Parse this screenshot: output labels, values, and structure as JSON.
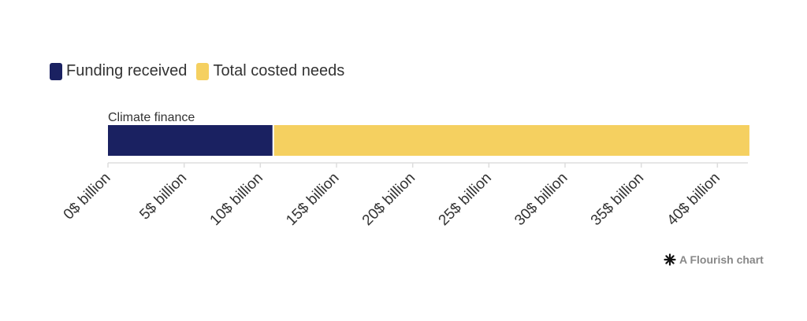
{
  "colors": {
    "funding": "#1a2161",
    "needs": "#f5d060",
    "axis": "#dddddd",
    "text": "#333333"
  },
  "legend": [
    {
      "label": "Funding received",
      "color": "#1a2161"
    },
    {
      "label": "Total costed needs",
      "color": "#f5d060"
    }
  ],
  "credit": {
    "icon": "flourish-asterisk-icon",
    "text": "A Flourish chart"
  },
  "chart_data": {
    "type": "bar",
    "orientation": "horizontal",
    "stacked": true,
    "categories": [
      "Climate finance"
    ],
    "series": [
      {
        "name": "Funding received",
        "values": [
          10.9
        ]
      },
      {
        "name": "Total costed needs",
        "values": [
          31.2
        ]
      }
    ],
    "xlim": [
      0,
      42
    ],
    "x_ticks": [
      0,
      5,
      10,
      15,
      20,
      25,
      30,
      35,
      40
    ],
    "tick_labels": [
      "0$ billion",
      "5$ billion",
      "10$ billion",
      "15$ billion",
      "20$ billion",
      "25$ billion",
      "30$ billion",
      "35$ billion",
      "40$ billion"
    ],
    "legend_position": "top-left",
    "grid": false
  }
}
